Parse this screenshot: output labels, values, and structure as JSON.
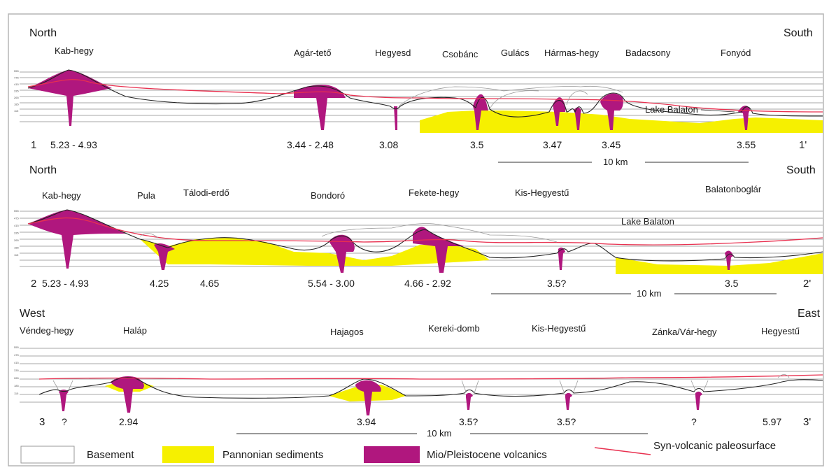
{
  "colors": {
    "volcanic": "#b0177e",
    "sediment": "#f6f000",
    "paleosurface": "#e8304f",
    "basement_outline": "#222222",
    "grid": "#8a8a8a"
  },
  "sections": [
    {
      "start_label": "1",
      "end_label": "1'",
      "left_direction": "North",
      "right_direction": "South",
      "lake_label": "Lake Balaton",
      "scale_label": "10 km",
      "axis_ticks": [
        "555",
        "475",
        "415",
        "335",
        "265",
        "185",
        "115"
      ],
      "localities": [
        "Kab-hegy",
        "Agár-tető",
        "Hegyesd",
        "Csobánc",
        "Gulács",
        "Hármas-hegy",
        "Badacsony",
        "Fonyód"
      ],
      "ages": [
        "5.23 - 4.93",
        "3.44 - 2.48",
        "3.08",
        "3.5",
        "3.47",
        "3.45",
        "3.55"
      ]
    },
    {
      "start_label": "2",
      "end_label": "2'",
      "left_direction": "North",
      "right_direction": "South",
      "lake_label": "Lake Balaton",
      "scale_label": "10 km",
      "axis_ticks": [
        "555",
        "475",
        "415",
        "335",
        "265",
        "185",
        "115"
      ],
      "localities": [
        "Kab-hegy",
        "Pula",
        "Tálodi-erdő",
        "Bondoró",
        "Fekete-hegy",
        "Kis-Hegyestű",
        "Balatonboglár"
      ],
      "ages": [
        "5.23 - 4.93",
        "4.25",
        "4.65",
        "5.54 - 3.00",
        "4.66 - 2.92",
        "3.5?",
        "3.5"
      ]
    },
    {
      "start_label": "3",
      "end_label": "3'",
      "left_direction": "West",
      "right_direction": "East",
      "scale_label": "10 km",
      "axis_ticks": [
        "555",
        "475",
        "415",
        "335",
        "265",
        "185",
        "115"
      ],
      "localities": [
        "Véndeg-hegy",
        "Haláp",
        "Hajagos",
        "Kereki-domb",
        "Kis-Hegyestű",
        "Zánka/Vár-hegy",
        "Hegyestű"
      ],
      "ages": [
        "?",
        "2.94",
        "3.94",
        "3.5?",
        "3.5?",
        "?",
        "5.97"
      ]
    }
  ],
  "legend": {
    "basement": "Basement",
    "sediments": "Pannonian sediments",
    "volcanics": "Mio/Pleistocene volcanics",
    "paleosurface": "Syn-volcanic paleosurface"
  }
}
